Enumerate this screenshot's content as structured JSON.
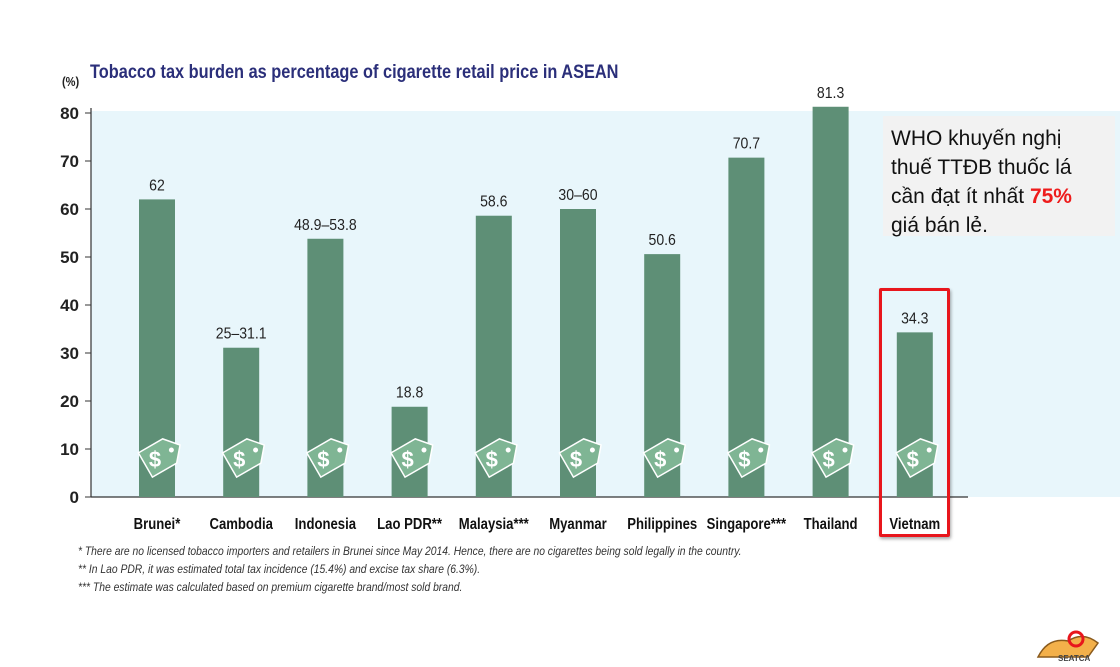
{
  "chart_data": {
    "type": "bar",
    "title": "Tobacco tax burden as percentage of cigarette retail price in ASEAN",
    "ylabel": "(%)",
    "ylim": [
      0,
      80
    ],
    "yticks": [
      "0",
      "10",
      "20",
      "30",
      "40",
      "50",
      "60",
      "70",
      "80"
    ],
    "categories": [
      "Brunei*",
      "Cambodia",
      "Indonesia",
      "Lao PDR**",
      "Malaysia***",
      "Myanmar",
      "Philippines",
      "Singapore***",
      "Thailand",
      "Vietnam"
    ],
    "values": [
      62,
      31.1,
      53.8,
      18.8,
      58.6,
      60,
      50.6,
      70.7,
      81.3,
      34.3
    ],
    "data_labels": [
      "62",
      "25–31.1",
      "48.9–53.8",
      "18.8",
      "58.6",
      "30–60",
      "50.6",
      "70.7",
      "81.3",
      "34.3"
    ],
    "highlighted_category": "Vietnam",
    "grid": false,
    "colors": {
      "bar": "#5e8f76",
      "tag": "#7fb594",
      "plot_background": "#e8f6fb",
      "highlight_border": "#e8161c"
    }
  },
  "note": {
    "line1": "WHO khuyến nghị",
    "line2": "thuế TTĐB thuốc lá",
    "line3_prefix": "cần đạt ít nhất ",
    "line3_highlight": "75%",
    "line4": "giá bán lẻ."
  },
  "footnotes": [
    "* There are no licensed tobacco importers and retailers in Brunei since May 2014. Hence, there are no cigarettes being sold legally in the country.",
    "** In Lao PDR, it was estimated total tax incidence (15.4%) and excise tax share (6.3%).",
    "*** The estimate was calculated based on premium cigarette brand/most sold brand."
  ],
  "logo": {
    "text": "SEATCA",
    "icon": "seatca-logo-icon"
  }
}
